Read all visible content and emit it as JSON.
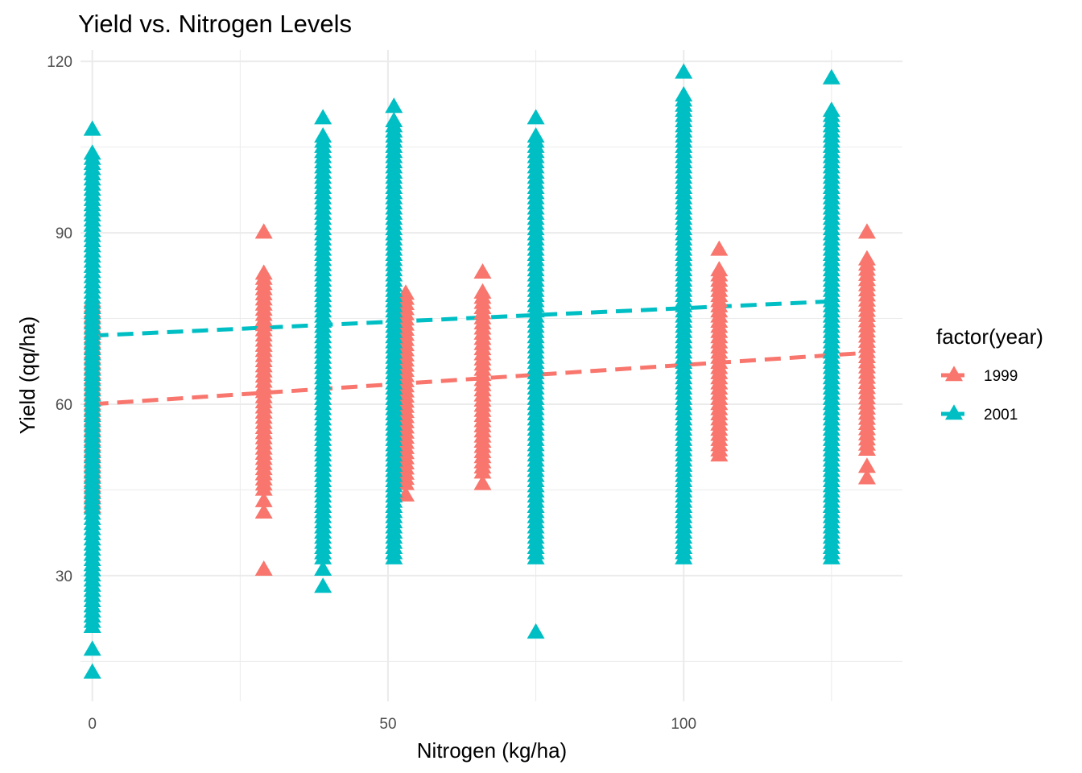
{
  "chart_data": {
    "type": "scatter",
    "title": "Yield vs. Nitrogen Levels",
    "xlabel": "Nitrogen (kg/ha)",
    "ylabel": "Yield (qq/ha)",
    "xlim": [
      -2,
      137
    ],
    "ylim": [
      8,
      122
    ],
    "x_ticks": [
      0,
      50,
      100
    ],
    "y_ticks": [
      30,
      60,
      90,
      120
    ],
    "x_tick_labels": [
      "0",
      "50",
      "100"
    ],
    "y_tick_labels": [
      "30",
      "60",
      "90",
      "120"
    ],
    "grid": true,
    "legend": {
      "title": "factor(year)",
      "position": "right"
    },
    "marker": "triangle",
    "series": [
      {
        "name": "1999",
        "color": "#F8766D",
        "columns": [
          {
            "x": 0,
            "min": 42,
            "max": 78,
            "extras": []
          },
          {
            "x": 29,
            "min": 45,
            "max": 83,
            "extras": [
              31,
              41,
              43,
              90
            ]
          },
          {
            "x": 53,
            "min": 46,
            "max": 80,
            "extras": [
              44
            ]
          },
          {
            "x": 66,
            "min": 48,
            "max": 80,
            "extras": [
              46,
              83
            ]
          },
          {
            "x": 106,
            "min": 51,
            "max": 84,
            "extras": [
              87
            ]
          },
          {
            "x": 131,
            "min": 52,
            "max": 86,
            "extras": [
              47,
              49,
              90
            ]
          }
        ],
        "trend": {
          "x": [
            0,
            131
          ],
          "y": [
            60,
            69
          ]
        }
      },
      {
        "name": "2001",
        "color": "#00BFC4",
        "columns": [
          {
            "x": 0,
            "min": 21,
            "max": 104,
            "extras": [
              13,
              17,
              108
            ]
          },
          {
            "x": 39,
            "min": 33,
            "max": 107,
            "extras": [
              28,
              31,
              110
            ]
          },
          {
            "x": 51,
            "min": 33,
            "max": 110,
            "extras": [
              112
            ]
          },
          {
            "x": 75,
            "min": 33,
            "max": 107,
            "extras": [
              20,
              110
            ]
          },
          {
            "x": 100,
            "min": 33,
            "max": 114,
            "extras": [
              118
            ]
          },
          {
            "x": 125,
            "min": 33,
            "max": 112,
            "extras": [
              117
            ]
          }
        ],
        "trend": {
          "x": [
            0,
            125
          ],
          "y": [
            72,
            78
          ]
        }
      }
    ]
  }
}
